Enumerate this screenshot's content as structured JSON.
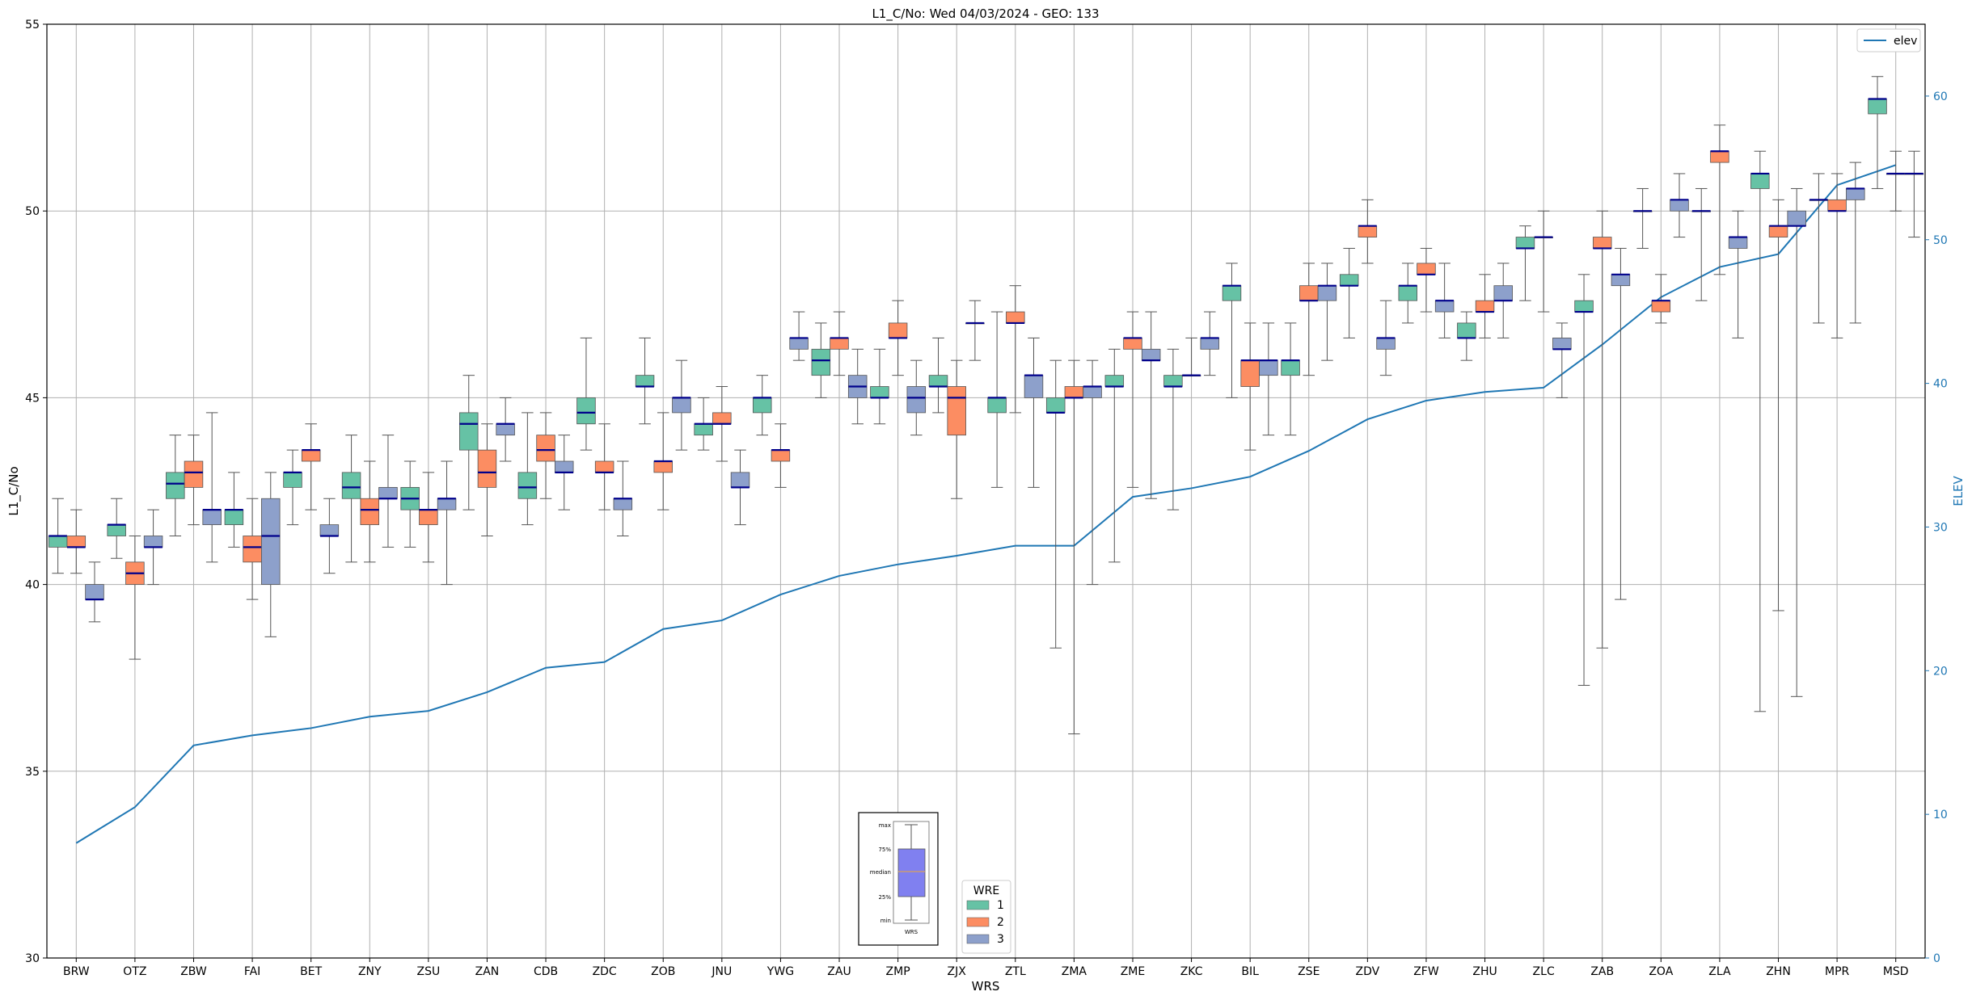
{
  "chart_data": {
    "type": "box",
    "title": "L1_C/No: Wed 04/03/2024 - GEO: 133",
    "xlabel": "WRS",
    "ylabel": "L1_C/No",
    "y2label": "ELEV",
    "ylim": [
      30,
      55
    ],
    "y2lim": [
      0,
      65
    ],
    "yticks": [
      30,
      35,
      40,
      45,
      50,
      55
    ],
    "y2ticks": [
      0,
      10,
      20,
      30,
      40,
      50,
      60
    ],
    "grid": true,
    "categories": [
      "BRW",
      "OTZ",
      "ZBW",
      "FAI",
      "BET",
      "ZNY",
      "ZSU",
      "ZAN",
      "CDB",
      "ZDC",
      "ZOB",
      "JNU",
      "YWG",
      "ZAU",
      "ZMP",
      "ZJX",
      "ZTL",
      "ZMA",
      "ZME",
      "ZKC",
      "BIL",
      "ZSE",
      "ZDV",
      "ZFW",
      "ZHU",
      "ZLC",
      "ZAB",
      "ZOA",
      "ZLA",
      "ZHN",
      "MPR",
      "MSD"
    ],
    "legend": {
      "title": "WRE",
      "position": "bottom-center",
      "entries": [
        {
          "label": "1",
          "color": "#66c2a5"
        },
        {
          "label": "2",
          "color": "#fc8d62"
        },
        {
          "label": "3",
          "color": "#8da0cb"
        }
      ]
    },
    "line_legend": {
      "label": "elev",
      "position": "top-right",
      "color": "#1f77b4"
    },
    "key_box": {
      "labels": [
        "max",
        "75%",
        "median",
        "25%",
        "min"
      ],
      "xlabel": "WRS",
      "color": "#8080f0",
      "median_color": "#d9a05b"
    },
    "elev": {
      "name": "elev",
      "color": "#1f77b4",
      "values": [
        8,
        10.5,
        14.8,
        15.5,
        16,
        16.8,
        17.2,
        18.5,
        20.2,
        20.6,
        22.9,
        23.5,
        25.3,
        26.6,
        27.4,
        28,
        28.7,
        28.7,
        32.1,
        32.7,
        33.5,
        35.3,
        37.5,
        38.8,
        39.4,
        39.7,
        42.7,
        46,
        48.1,
        49,
        53.8,
        55.2
      ]
    },
    "series": [
      {
        "name": "1",
        "color": "#66c2a5",
        "boxes": [
          {
            "cat": "BRW",
            "min": 40.3,
            "q1": 41.0,
            "median": 41.3,
            "q3": 41.3,
            "max": 42.3
          },
          {
            "cat": "OTZ",
            "min": 40.7,
            "q1": 41.3,
            "median": 41.6,
            "q3": 41.6,
            "max": 42.3
          },
          {
            "cat": "ZBW",
            "min": 41.3,
            "q1": 42.3,
            "median": 42.7,
            "q3": 43.0,
            "max": 44.0
          },
          {
            "cat": "FAI",
            "min": 41.0,
            "q1": 41.6,
            "median": 42.0,
            "q3": 42.0,
            "max": 43.0
          },
          {
            "cat": "BET",
            "min": 41.6,
            "q1": 42.6,
            "median": 43.0,
            "q3": 43.0,
            "max": 43.6
          },
          {
            "cat": "ZNY",
            "min": 40.6,
            "q1": 42.3,
            "median": 42.6,
            "q3": 43.0,
            "max": 44.0
          },
          {
            "cat": "ZSU",
            "min": 41.0,
            "q1": 42.0,
            "median": 42.3,
            "q3": 42.6,
            "max": 43.3
          },
          {
            "cat": "ZAN",
            "min": 42.0,
            "q1": 43.6,
            "median": 44.3,
            "q3": 44.6,
            "max": 45.6
          },
          {
            "cat": "CDB",
            "min": 41.6,
            "q1": 42.3,
            "median": 42.6,
            "q3": 43.0,
            "max": 44.6
          },
          {
            "cat": "ZDC",
            "min": 43.6,
            "q1": 44.3,
            "median": 44.6,
            "q3": 45.0,
            "max": 46.6
          },
          {
            "cat": "ZOB",
            "min": 44.3,
            "q1": 45.3,
            "median": 45.3,
            "q3": 45.6,
            "max": 46.6
          },
          {
            "cat": "JNU",
            "min": 43.6,
            "q1": 44.0,
            "median": 44.3,
            "q3": 44.3,
            "max": 45.0
          },
          {
            "cat": "YWG",
            "min": 44.0,
            "q1": 44.6,
            "median": 45.0,
            "q3": 45.0,
            "max": 45.6
          },
          {
            "cat": "ZAU",
            "min": 45.0,
            "q1": 45.6,
            "median": 46.0,
            "q3": 46.3,
            "max": 47.0
          },
          {
            "cat": "ZMP",
            "min": 44.3,
            "q1": 45.0,
            "median": 45.0,
            "q3": 45.3,
            "max": 46.3
          },
          {
            "cat": "ZJX",
            "min": 44.6,
            "q1": 45.3,
            "median": 45.3,
            "q3": 45.6,
            "max": 46.6
          },
          {
            "cat": "ZTL",
            "min": 42.6,
            "q1": 44.6,
            "median": 45.0,
            "q3": 45.0,
            "max": 47.3
          },
          {
            "cat": "ZMA",
            "min": 38.3,
            "q1": 44.6,
            "median": 44.6,
            "q3": 45.0,
            "max": 46.0
          },
          {
            "cat": "ZME",
            "min": 40.6,
            "q1": 45.3,
            "median": 45.3,
            "q3": 45.6,
            "max": 46.3
          },
          {
            "cat": "ZKC",
            "min": 42.0,
            "q1": 45.3,
            "median": 45.3,
            "q3": 45.6,
            "max": 46.3
          },
          {
            "cat": "BIL",
            "min": 45.0,
            "q1": 47.6,
            "median": 48.0,
            "q3": 48.0,
            "max": 48.6
          },
          {
            "cat": "ZSE",
            "min": 44.0,
            "q1": 45.6,
            "median": 46.0,
            "q3": 46.0,
            "max": 47.0
          },
          {
            "cat": "ZDV",
            "min": 46.6,
            "q1": 48.0,
            "median": 48.0,
            "q3": 48.3,
            "max": 49.0
          },
          {
            "cat": "ZFW",
            "min": 47.0,
            "q1": 47.6,
            "median": 48.0,
            "q3": 48.0,
            "max": 48.6
          },
          {
            "cat": "ZHU",
            "min": 46.0,
            "q1": 46.6,
            "median": 46.6,
            "q3": 47.0,
            "max": 47.3
          },
          {
            "cat": "ZLC",
            "min": 47.6,
            "q1": 49.0,
            "median": 49.0,
            "q3": 49.3,
            "max": 49.6
          },
          {
            "cat": "ZAB",
            "min": 37.3,
            "q1": 47.3,
            "median": 47.3,
            "q3": 47.6,
            "max": 48.3
          },
          {
            "cat": "ZOA",
            "min": 49.0,
            "q1": 50.0,
            "median": 50.0,
            "q3": 50.0,
            "max": 50.6
          },
          {
            "cat": "ZLA",
            "min": 47.6,
            "q1": 50.0,
            "median": 50.0,
            "q3": 50.0,
            "max": 50.6
          },
          {
            "cat": "ZHN",
            "min": 36.6,
            "q1": 50.6,
            "median": 51.0,
            "q3": 51.0,
            "max": 51.6
          },
          {
            "cat": "MPR",
            "min": 47.0,
            "q1": 50.3,
            "median": 50.3,
            "q3": 50.3,
            "max": 51.0
          },
          {
            "cat": "MSD",
            "min": 50.6,
            "q1": 52.6,
            "median": 53.0,
            "q3": 53.0,
            "max": 53.6
          }
        ]
      },
      {
        "name": "2",
        "color": "#fc8d62",
        "boxes": [
          {
            "cat": "BRW",
            "min": 40.3,
            "q1": 41.0,
            "median": 41.0,
            "q3": 41.3,
            "max": 42.0
          },
          {
            "cat": "OTZ",
            "min": 38.0,
            "q1": 40.0,
            "median": 40.3,
            "q3": 40.6,
            "max": 41.3
          },
          {
            "cat": "ZBW",
            "min": 41.6,
            "q1": 42.6,
            "median": 43.0,
            "q3": 43.3,
            "max": 44.0
          },
          {
            "cat": "FAI",
            "min": 39.6,
            "q1": 40.6,
            "median": 41.0,
            "q3": 41.3,
            "max": 42.3
          },
          {
            "cat": "BET",
            "min": 42.0,
            "q1": 43.3,
            "median": 43.6,
            "q3": 43.6,
            "max": 44.3
          },
          {
            "cat": "ZNY",
            "min": 40.6,
            "q1": 41.6,
            "median": 42.0,
            "q3": 42.3,
            "max": 43.3
          },
          {
            "cat": "ZSU",
            "min": 40.6,
            "q1": 41.6,
            "median": 42.0,
            "q3": 42.0,
            "max": 43.0
          },
          {
            "cat": "ZAN",
            "min": 41.3,
            "q1": 42.6,
            "median": 43.0,
            "q3": 43.6,
            "max": 44.3
          },
          {
            "cat": "CDB",
            "min": 42.3,
            "q1": 43.3,
            "median": 43.6,
            "q3": 44.0,
            "max": 44.6
          },
          {
            "cat": "ZDC",
            "min": 42.0,
            "q1": 43.0,
            "median": 43.0,
            "q3": 43.3,
            "max": 44.3
          },
          {
            "cat": "ZOB",
            "min": 42.0,
            "q1": 43.0,
            "median": 43.3,
            "q3": 43.3,
            "max": 44.6
          },
          {
            "cat": "JNU",
            "min": 43.3,
            "q1": 44.3,
            "median": 44.3,
            "q3": 44.6,
            "max": 45.3
          },
          {
            "cat": "YWG",
            "min": 42.6,
            "q1": 43.3,
            "median": 43.6,
            "q3": 43.6,
            "max": 44.3
          },
          {
            "cat": "ZAU",
            "min": 45.6,
            "q1": 46.3,
            "median": 46.6,
            "q3": 46.6,
            "max": 47.3
          },
          {
            "cat": "ZMP",
            "min": 45.6,
            "q1": 46.6,
            "median": 46.6,
            "q3": 47.0,
            "max": 47.6
          },
          {
            "cat": "ZJX",
            "min": 42.3,
            "q1": 44.0,
            "median": 45.0,
            "q3": 45.3,
            "max": 46.0
          },
          {
            "cat": "ZTL",
            "min": 44.6,
            "q1": 47.0,
            "median": 47.0,
            "q3": 47.3,
            "max": 48.0
          },
          {
            "cat": "ZMA",
            "min": 36.0,
            "q1": 45.0,
            "median": 45.0,
            "q3": 45.3,
            "max": 46.0
          },
          {
            "cat": "ZME",
            "min": 42.6,
            "q1": 46.3,
            "median": 46.6,
            "q3": 46.6,
            "max": 47.3
          },
          {
            "cat": "ZKC",
            "min": 45.6,
            "q1": 45.6,
            "median": 45.6,
            "q3": 45.6,
            "max": 46.6
          },
          {
            "cat": "BIL",
            "min": 43.6,
            "q1": 45.3,
            "median": 46.0,
            "q3": 46.0,
            "max": 47.0
          },
          {
            "cat": "ZSE",
            "min": 45.6,
            "q1": 47.6,
            "median": 47.6,
            "q3": 48.0,
            "max": 48.6
          },
          {
            "cat": "ZDV",
            "min": 48.6,
            "q1": 49.3,
            "median": 49.6,
            "q3": 49.6,
            "max": 50.3
          },
          {
            "cat": "ZFW",
            "min": 47.3,
            "q1": 48.3,
            "median": 48.3,
            "q3": 48.6,
            "max": 49.0
          },
          {
            "cat": "ZHU",
            "min": 46.6,
            "q1": 47.3,
            "median": 47.3,
            "q3": 47.6,
            "max": 48.3
          },
          {
            "cat": "ZLC",
            "min": 47.3,
            "q1": 49.3,
            "median": 49.3,
            "q3": 49.3,
            "max": 50.0
          },
          {
            "cat": "ZAB",
            "min": 38.3,
            "q1": 49.0,
            "median": 49.0,
            "q3": 49.3,
            "max": 50.0
          },
          {
            "cat": "ZOA",
            "min": 47.0,
            "q1": 47.3,
            "median": 47.6,
            "q3": 47.6,
            "max": 48.3
          },
          {
            "cat": "ZLA",
            "min": 48.3,
            "q1": 51.3,
            "median": 51.6,
            "q3": 51.6,
            "max": 52.3
          },
          {
            "cat": "ZHN",
            "min": 39.3,
            "q1": 49.3,
            "median": 49.6,
            "q3": 49.6,
            "max": 50.3
          },
          {
            "cat": "MPR",
            "min": 46.6,
            "q1": 50.0,
            "median": 50.0,
            "q3": 50.3,
            "max": 51.0
          },
          {
            "cat": "MSD",
            "min": 50.0,
            "q1": 51.0,
            "median": 51.0,
            "q3": 51.0,
            "max": 51.6
          }
        ]
      },
      {
        "name": "3",
        "color": "#8da0cb",
        "boxes": [
          {
            "cat": "BRW",
            "min": 39.0,
            "q1": 39.6,
            "median": 39.6,
            "q3": 40.0,
            "max": 40.6
          },
          {
            "cat": "OTZ",
            "min": 40.0,
            "q1": 41.0,
            "median": 41.0,
            "q3": 41.3,
            "max": 42.0
          },
          {
            "cat": "ZBW",
            "min": 40.6,
            "q1": 41.6,
            "median": 42.0,
            "q3": 42.0,
            "max": 44.6
          },
          {
            "cat": "FAI",
            "min": 38.6,
            "q1": 40.0,
            "median": 41.3,
            "q3": 42.3,
            "max": 43.0
          },
          {
            "cat": "BET",
            "min": 40.3,
            "q1": 41.3,
            "median": 41.3,
            "q3": 41.6,
            "max": 42.3
          },
          {
            "cat": "ZNY",
            "min": 41.0,
            "q1": 42.3,
            "median": 42.3,
            "q3": 42.6,
            "max": 44.0
          },
          {
            "cat": "ZSU",
            "min": 40.0,
            "q1": 42.0,
            "median": 42.3,
            "q3": 42.3,
            "max": 43.3
          },
          {
            "cat": "ZAN",
            "min": 43.3,
            "q1": 44.0,
            "median": 44.3,
            "q3": 44.3,
            "max": 45.0
          },
          {
            "cat": "CDB",
            "min": 42.0,
            "q1": 43.0,
            "median": 43.0,
            "q3": 43.3,
            "max": 44.0
          },
          {
            "cat": "ZDC",
            "min": 41.3,
            "q1": 42.0,
            "median": 42.3,
            "q3": 42.3,
            "max": 43.3
          },
          {
            "cat": "ZOB",
            "min": 43.6,
            "q1": 44.6,
            "median": 45.0,
            "q3": 45.0,
            "max": 46.0
          },
          {
            "cat": "JNU",
            "min": 41.6,
            "q1": 42.6,
            "median": 42.6,
            "q3": 43.0,
            "max": 43.6
          },
          {
            "cat": "YWG",
            "min": 46.0,
            "q1": 46.3,
            "median": 46.6,
            "q3": 46.6,
            "max": 47.3
          },
          {
            "cat": "ZAU",
            "min": 44.3,
            "q1": 45.0,
            "median": 45.3,
            "q3": 45.6,
            "max": 46.3
          },
          {
            "cat": "ZMP",
            "min": 44.0,
            "q1": 44.6,
            "median": 45.0,
            "q3": 45.3,
            "max": 46.0
          },
          {
            "cat": "ZJX",
            "min": 46.0,
            "q1": 47.0,
            "median": 47.0,
            "q3": 47.0,
            "max": 47.6
          },
          {
            "cat": "ZTL",
            "min": 42.6,
            "q1": 45.0,
            "median": 45.6,
            "q3": 45.6,
            "max": 46.6
          },
          {
            "cat": "ZMA",
            "min": 40.0,
            "q1": 45.0,
            "median": 45.3,
            "q3": 45.3,
            "max": 46.0
          },
          {
            "cat": "ZME",
            "min": 42.3,
            "q1": 46.0,
            "median": 46.0,
            "q3": 46.3,
            "max": 47.3
          },
          {
            "cat": "ZKC",
            "min": 45.6,
            "q1": 46.3,
            "median": 46.6,
            "q3": 46.6,
            "max": 47.3
          },
          {
            "cat": "BIL",
            "min": 44.0,
            "q1": 45.6,
            "median": 46.0,
            "q3": 46.0,
            "max": 47.0
          },
          {
            "cat": "ZSE",
            "min": 46.0,
            "q1": 47.6,
            "median": 48.0,
            "q3": 48.0,
            "max": 48.6
          },
          {
            "cat": "ZDV",
            "min": 45.6,
            "q1": 46.3,
            "median": 46.6,
            "q3": 46.6,
            "max": 47.6
          },
          {
            "cat": "ZFW",
            "min": 46.6,
            "q1": 47.3,
            "median": 47.6,
            "q3": 47.6,
            "max": 48.6
          },
          {
            "cat": "ZHU",
            "min": 46.6,
            "q1": 47.6,
            "median": 47.6,
            "q3": 48.0,
            "max": 48.6
          },
          {
            "cat": "ZLC",
            "min": 45.0,
            "q1": 46.3,
            "median": 46.3,
            "q3": 46.6,
            "max": 47.0
          },
          {
            "cat": "ZAB",
            "min": 39.6,
            "q1": 48.0,
            "median": 48.3,
            "q3": 48.3,
            "max": 49.0
          },
          {
            "cat": "ZOA",
            "min": 49.3,
            "q1": 50.0,
            "median": 50.3,
            "q3": 50.3,
            "max": 51.0
          },
          {
            "cat": "ZLA",
            "min": 46.6,
            "q1": 49.0,
            "median": 49.3,
            "q3": 49.3,
            "max": 50.0
          },
          {
            "cat": "ZHN",
            "min": 37.0,
            "q1": 49.6,
            "median": 49.6,
            "q3": 50.0,
            "max": 50.6
          },
          {
            "cat": "MPR",
            "min": 47.0,
            "q1": 50.3,
            "median": 50.6,
            "q3": 50.6,
            "max": 51.3
          },
          {
            "cat": "MSD",
            "min": 49.3,
            "q1": 51.0,
            "median": 51.0,
            "q3": 51.0,
            "max": 51.6
          }
        ]
      }
    ]
  }
}
